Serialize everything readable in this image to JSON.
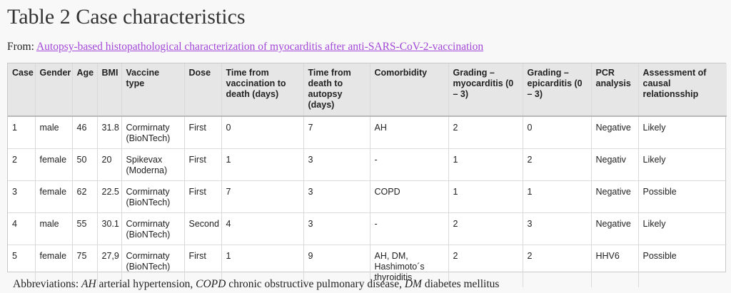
{
  "title": "Table 2 Case characteristics",
  "source": {
    "prefix": "From:",
    "link_text": "Autopsy-based histopathological characterization of myocarditis after anti-SARS-CoV-2-vaccination"
  },
  "table": {
    "headers": [
      "Case",
      "Gender",
      "Age",
      "BMI",
      "Vaccine type",
      "Dose",
      "Time from vaccination to death (days)",
      "Time from death to autopsy (days)",
      "Comorbidity",
      "Grading – myocarditis (0 – 3)",
      "Grading – epicarditis (0 – 3)",
      "PCR analysis",
      "Assessment of causal relationsship"
    ],
    "rows": [
      [
        "1",
        "male",
        "46",
        "31.8",
        "Cormirnaty (BioNTech)",
        "First",
        "0",
        "7",
        "AH",
        "2",
        "0",
        "Negative",
        "Likely"
      ],
      [
        "2",
        "female",
        "50",
        "20",
        "Spikevax (Moderna)",
        "First",
        "1",
        "3",
        "-",
        "1",
        "2",
        "Negativ",
        "Likely"
      ],
      [
        "3",
        "female",
        "62",
        "22.5",
        "Cormirnaty (BioNTech)",
        "First",
        "7",
        "3",
        "COPD",
        "1",
        "1",
        "Negative",
        "Possible"
      ],
      [
        "4",
        "male",
        "55",
        "30.1",
        "Cormirnaty (BioNTech)",
        "Second",
        "4",
        "3",
        "-",
        "2",
        "3",
        "Negative",
        "Likely"
      ],
      [
        "5",
        "female",
        "75",
        "27,9",
        "Cormirnaty (BioNTech)",
        "First",
        "1",
        "9",
        "AH, DM, Hashimoto´s thyroiditis",
        "2",
        "2",
        "HHV6",
        "Possible"
      ]
    ]
  },
  "abbreviations": {
    "prefix": "Abbreviations:",
    "items": [
      {
        "abbr": "AH",
        "text": "arterial hypertension,"
      },
      {
        "abbr": "COPD",
        "text": "chronic obstructive pulmonary disease,"
      },
      {
        "abbr": "DM",
        "text": "diabetes mellitus"
      }
    ]
  }
}
